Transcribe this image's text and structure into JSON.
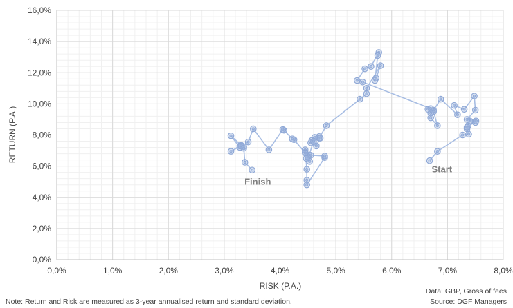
{
  "chart_data": {
    "type": "line",
    "xlabel": "RISK (P.A.)",
    "ylabel": "RETURN (P.A.)",
    "xlim": [
      0,
      8
    ],
    "ylim": [
      0,
      16
    ],
    "x_ticks": [
      0,
      1,
      2,
      3,
      4,
      5,
      6,
      7,
      8
    ],
    "y_ticks": [
      0,
      2,
      4,
      6,
      8,
      10,
      12,
      14,
      16
    ],
    "x_tick_labels": [
      "0,0%",
      "1,0%",
      "2,0%",
      "3,0%",
      "4,0%",
      "5,0%",
      "6,0%",
      "7,0%",
      "8,0%"
    ],
    "y_tick_labels": [
      "0,0%",
      "2,0%",
      "4,0%",
      "6,0%",
      "8,0%",
      "10,0%",
      "12,0%",
      "14,0%",
      "16,0%"
    ],
    "grid": true,
    "marker_color": "#8fa8d6",
    "line_color": "#a7bde3",
    "annotations": [
      {
        "text": "Start",
        "x": 6.9,
        "y": 5.6
      },
      {
        "text": "Finish",
        "x": 3.6,
        "y": 4.8
      }
    ],
    "series": [
      {
        "points": [
          [
            6.68,
            6.35
          ],
          [
            6.82,
            6.95
          ],
          [
            7.27,
            8.0
          ],
          [
            7.38,
            8.05
          ],
          [
            7.35,
            8.4
          ],
          [
            7.37,
            8.6
          ],
          [
            7.5,
            8.8
          ],
          [
            7.4,
            8.9
          ],
          [
            7.35,
            8.5
          ],
          [
            7.51,
            8.9
          ],
          [
            7.35,
            9.0
          ],
          [
            7.5,
            9.6
          ],
          [
            7.48,
            10.5
          ],
          [
            7.3,
            9.65
          ],
          [
            7.12,
            9.9
          ],
          [
            7.18,
            9.3
          ],
          [
            6.88,
            10.3
          ],
          [
            6.75,
            9.6
          ],
          [
            6.65,
            9.65
          ],
          [
            6.75,
            9.5
          ],
          [
            6.82,
            8.6
          ],
          [
            6.7,
            9.1
          ],
          [
            6.7,
            9.4
          ],
          [
            6.7,
            9.7
          ],
          [
            5.48,
            11.4
          ],
          [
            5.38,
            11.5
          ],
          [
            5.52,
            12.25
          ],
          [
            5.63,
            12.4
          ],
          [
            5.77,
            13.3
          ],
          [
            5.75,
            13.1
          ],
          [
            5.7,
            11.5
          ],
          [
            5.72,
            11.65
          ],
          [
            5.8,
            12.45
          ],
          [
            5.55,
            11.0
          ],
          [
            5.55,
            10.65
          ],
          [
            5.43,
            10.3
          ],
          [
            4.83,
            8.6
          ],
          [
            4.7,
            7.8
          ],
          [
            4.7,
            7.9
          ],
          [
            4.62,
            7.85
          ],
          [
            4.57,
            7.65
          ],
          [
            4.6,
            7.55
          ],
          [
            4.55,
            7.5
          ],
          [
            4.65,
            7.3
          ],
          [
            4.72,
            7.8
          ],
          [
            4.6,
            7.6
          ],
          [
            4.52,
            6.7
          ],
          [
            4.5,
            6.6
          ],
          [
            4.53,
            6.3
          ],
          [
            4.47,
            6.5
          ],
          [
            4.45,
            6.9
          ],
          [
            4.45,
            7.05
          ],
          [
            4.48,
            5.8
          ],
          [
            4.48,
            5.1
          ],
          [
            4.48,
            4.8
          ],
          [
            4.8,
            6.55
          ],
          [
            4.8,
            6.65
          ],
          [
            4.55,
            6.7
          ],
          [
            4.45,
            6.85
          ],
          [
            4.25,
            7.7
          ],
          [
            4.22,
            7.75
          ],
          [
            4.07,
            8.3
          ],
          [
            4.05,
            8.35
          ],
          [
            3.8,
            7.05
          ],
          [
            3.52,
            8.4
          ],
          [
            3.43,
            7.55
          ],
          [
            3.28,
            7.2
          ],
          [
            3.12,
            7.95
          ],
          [
            3.3,
            7.35
          ],
          [
            3.35,
            7.25
          ],
          [
            3.28,
            7.3
          ],
          [
            3.12,
            6.95
          ],
          [
            3.3,
            7.3
          ],
          [
            3.35,
            7.15
          ],
          [
            3.37,
            6.25
          ],
          [
            3.5,
            5.75
          ]
        ]
      }
    ]
  },
  "footer": {
    "note": "Note: Return and Risk are measured as 3-year annualised return and standard deviation.",
    "data_label": "Data: GBP, Gross of fees",
    "source_label": "Source: DGF Managers"
  }
}
